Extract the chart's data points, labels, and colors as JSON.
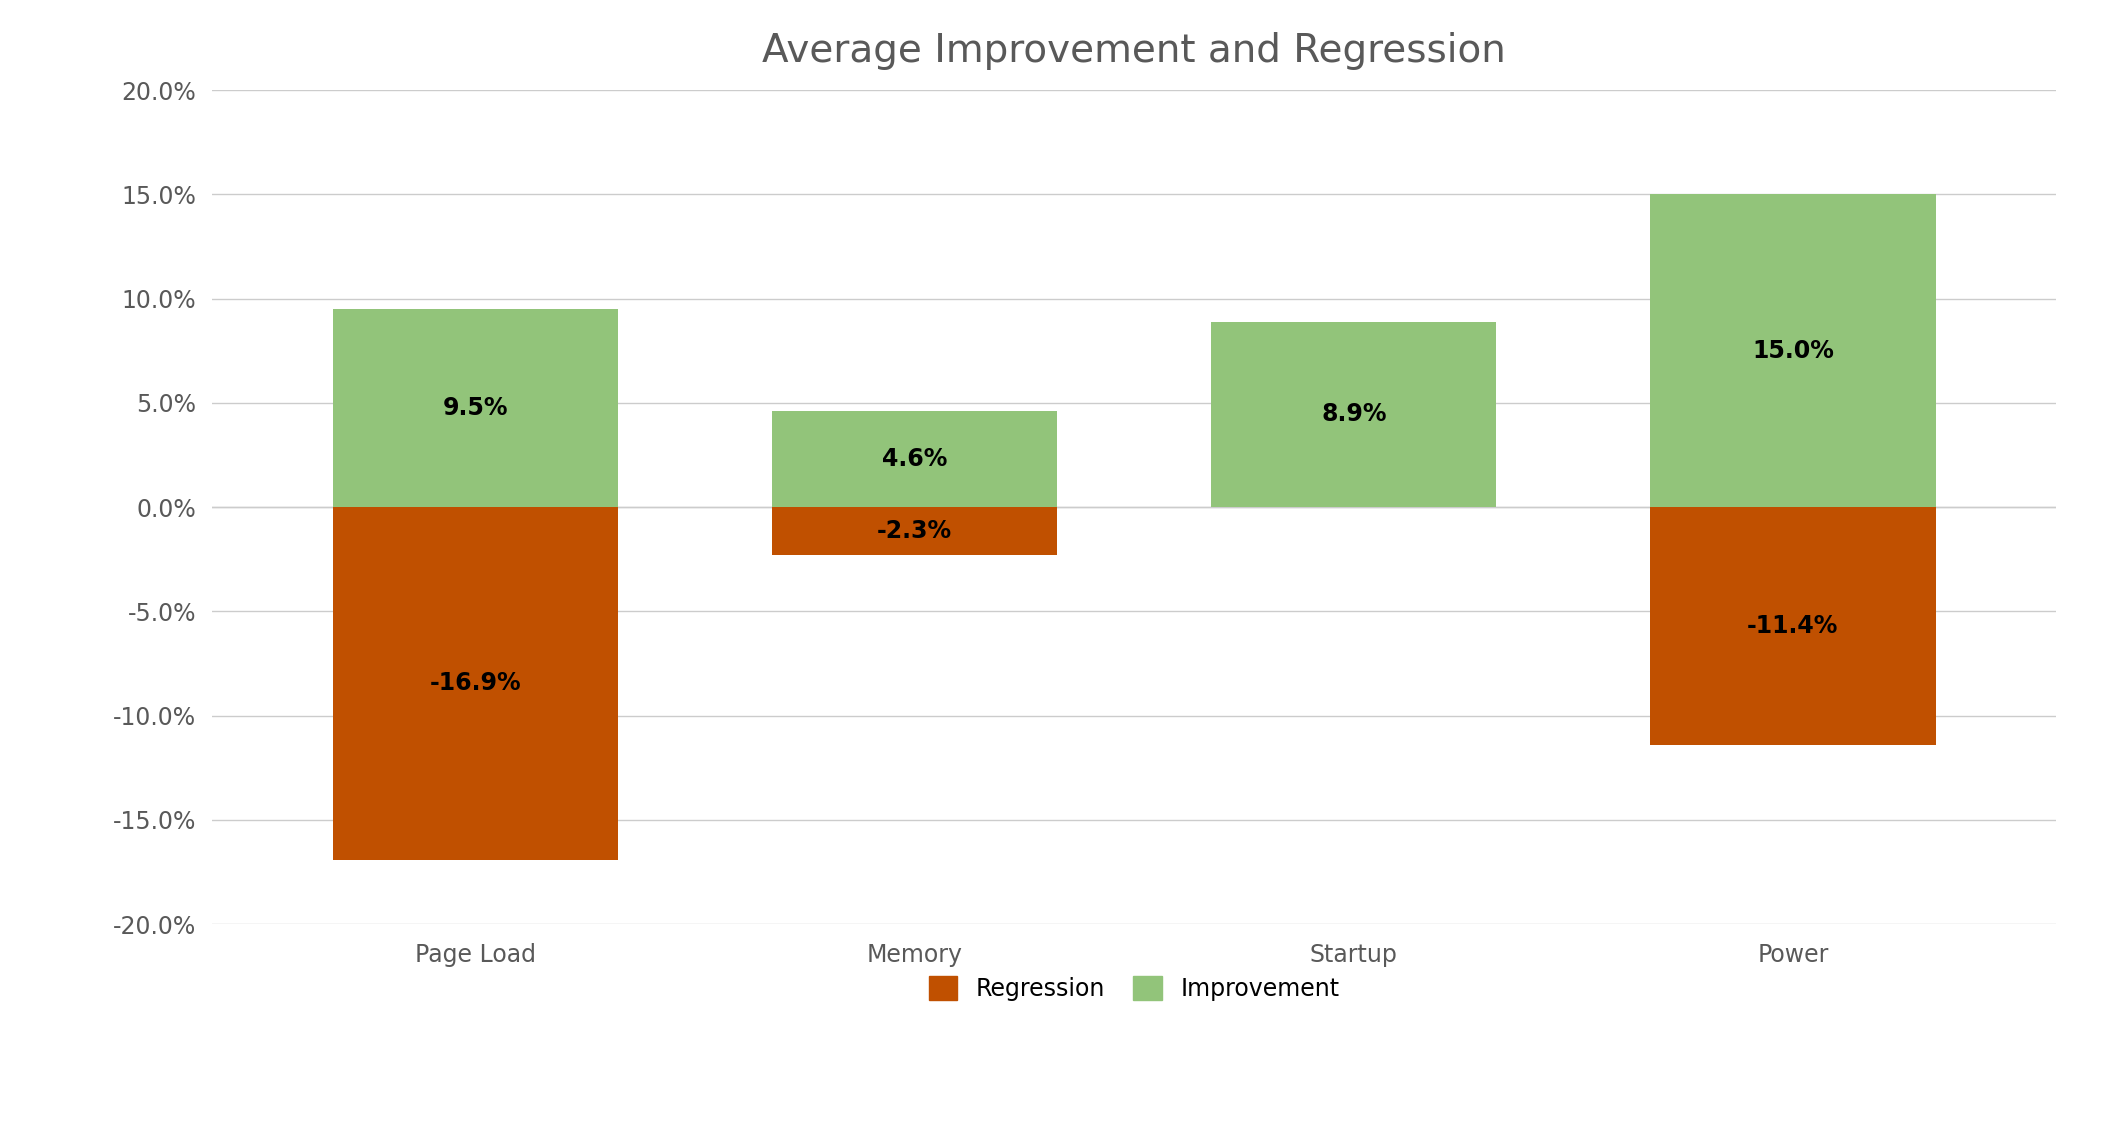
{
  "title": "Average Improvement and Regression",
  "categories": [
    "Page Load",
    "Memory",
    "Startup",
    "Power"
  ],
  "improvement": [
    9.5,
    4.6,
    8.9,
    15.0
  ],
  "regression": [
    -16.9,
    -2.3,
    0.0,
    -11.4
  ],
  "improvement_color": "#92C47A",
  "regression_color": "#C05000",
  "ylim": [
    -20.0,
    20.0
  ],
  "yticks": [
    -20.0,
    -15.0,
    -10.0,
    -5.0,
    0.0,
    5.0,
    10.0,
    15.0,
    20.0
  ],
  "title_fontsize": 28,
  "tick_fontsize": 17,
  "label_fontsize": 17,
  "legend_fontsize": 17,
  "bar_width": 0.65,
  "background_color": "#ffffff",
  "grid_color": "#cccccc",
  "text_color": "#595959"
}
